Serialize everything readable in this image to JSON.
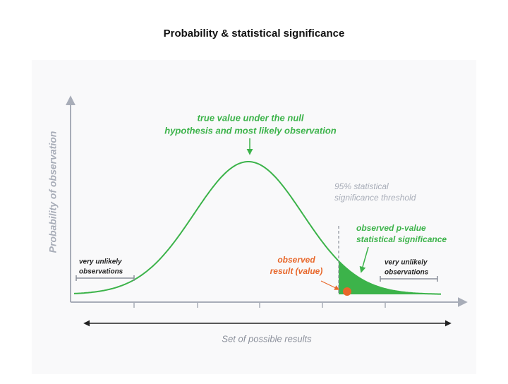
{
  "title": "Probability & statistical significance",
  "y_axis_label": "Probability of observation",
  "x_axis_label": "Set of possible results",
  "annotations": {
    "null_hypothesis": [
      "true value under the null",
      "hypothesis and most likely observation"
    ],
    "threshold": [
      "95% statistical",
      "significance threshold"
    ],
    "p_value": [
      "observed p-value",
      "statistical significance"
    ],
    "observed_result": [
      "observed",
      "result (value)"
    ],
    "unlikely_left": [
      "very unlikely",
      "observations"
    ],
    "unlikely_right": [
      "very unlikely",
      "observations"
    ]
  }
}
